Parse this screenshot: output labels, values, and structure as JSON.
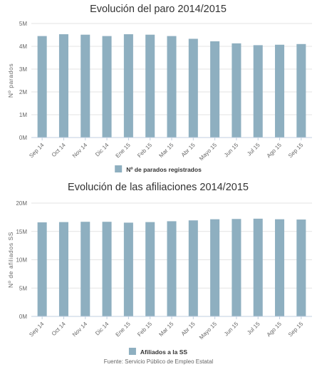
{
  "colors": {
    "bar": "#8eafc0",
    "grid": "#e3e3e3",
    "axis": "#c0cfe0"
  },
  "chart_data": [
    {
      "type": "bar",
      "title": "Evolución del paro 2014/2015",
      "ylabel": "Nº parados",
      "xlabel": "",
      "categories": [
        "Sep 14",
        "Oct 14",
        "Nov 14",
        "Dic 14",
        "Ene 15",
        "Feb 15",
        "Mar 15",
        "Abr 15",
        "Mayo 15",
        "Jun 15",
        "Jul 15",
        "Ago 15",
        "Sep 15"
      ],
      "series": [
        {
          "name": "Nº de parados registrados",
          "values": [
            4450000,
            4530000,
            4510000,
            4450000,
            4530000,
            4510000,
            4450000,
            4330000,
            4220000,
            4130000,
            4050000,
            4070000,
            4100000
          ]
        }
      ],
      "ylim": [
        0,
        5000000
      ],
      "yticks": [
        0,
        1000000,
        2000000,
        3000000,
        4000000,
        5000000
      ],
      "ytick_labels": [
        "0M",
        "1M",
        "2M",
        "3M",
        "4M",
        "5M"
      ],
      "grid": true,
      "legend": "bottom-center"
    },
    {
      "type": "bar",
      "title": "Evolución de las afiliaciones 2014/2015",
      "ylabel": "Nº de afiliados SS",
      "xlabel": "",
      "categories": [
        "Sep 14",
        "Oct 14",
        "Nov 14",
        "Dic 14",
        "Ene 15",
        "Feb 15",
        "Mar 15",
        "Abr 15",
        "Mayo 15",
        "Jun 15",
        "Jul 15",
        "Ago 15",
        "Sep 15"
      ],
      "series": [
        {
          "name": "Afiliados a la SS",
          "values": [
            16600000,
            16650000,
            16700000,
            16700000,
            16550000,
            16650000,
            16800000,
            16950000,
            17150000,
            17200000,
            17250000,
            17150000,
            17100000
          ]
        }
      ],
      "ylim": [
        0,
        20000000
      ],
      "yticks": [
        0,
        5000000,
        10000000,
        15000000,
        20000000
      ],
      "ytick_labels": [
        "0M",
        "5M",
        "10M",
        "15M",
        "20M"
      ],
      "grid": true,
      "legend": "bottom-center"
    }
  ],
  "source": "Fuente: Servicio Público de Empleo Estatal"
}
